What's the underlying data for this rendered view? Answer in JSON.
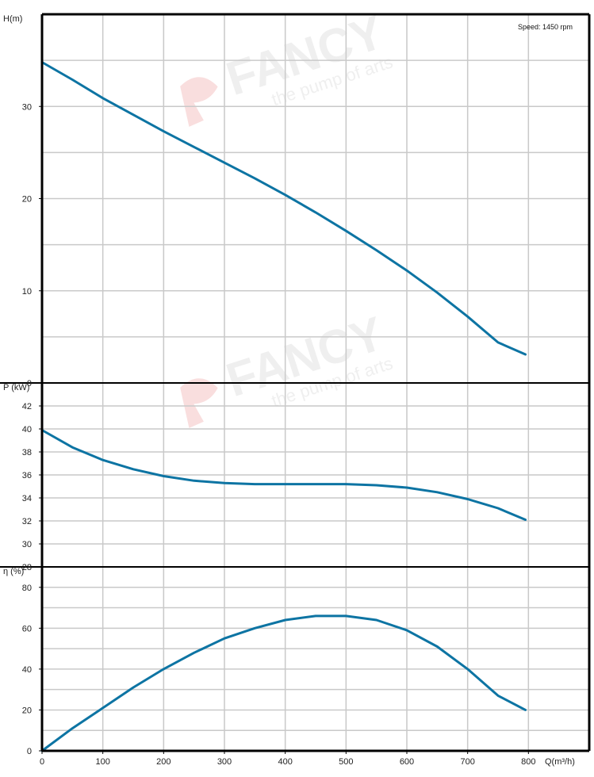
{
  "chart_data": [
    {
      "type": "line",
      "ylabel": "H(m)",
      "ylim": [
        0,
        40
      ],
      "yticks": [
        0,
        10,
        20,
        30
      ],
      "xlim": [
        0,
        900
      ],
      "grid": true,
      "annotation": "Speed: 1450 rpm",
      "series": [
        {
          "x": [
            0,
            50,
            100,
            150,
            200,
            250,
            300,
            350,
            400,
            450,
            500,
            550,
            600,
            650,
            700,
            750,
            795
          ],
          "y": [
            34.8,
            32.9,
            30.9,
            29.1,
            27.3,
            25.6,
            23.9,
            22.2,
            20.4,
            18.5,
            16.5,
            14.4,
            12.2,
            9.8,
            7.2,
            4.4,
            3.1
          ]
        }
      ]
    },
    {
      "type": "line",
      "ylabel": "P (kW)",
      "ylim": [
        28,
        44
      ],
      "yticks": [
        28,
        30,
        32,
        34,
        36,
        38,
        40,
        42
      ],
      "xlim": [
        0,
        900
      ],
      "grid": true,
      "series": [
        {
          "x": [
            0,
            50,
            100,
            150,
            200,
            250,
            300,
            350,
            400,
            450,
            500,
            550,
            600,
            650,
            700,
            750,
            795
          ],
          "y": [
            39.9,
            38.4,
            37.3,
            36.5,
            35.9,
            35.5,
            35.3,
            35.2,
            35.2,
            35.2,
            35.2,
            35.1,
            34.9,
            34.5,
            33.9,
            33.1,
            32.1
          ]
        }
      ]
    },
    {
      "type": "line",
      "ylabel": "η (%)",
      "ylim": [
        0,
        90
      ],
      "yticks": [
        0,
        20,
        40,
        60,
        80
      ],
      "xlim": [
        0,
        900
      ],
      "xticks": [
        0,
        100,
        200,
        300,
        400,
        500,
        600,
        700,
        800
      ],
      "xlabel": "Q(m³/h)",
      "grid": true,
      "series": [
        {
          "x": [
            0,
            50,
            100,
            150,
            200,
            250,
            300,
            350,
            400,
            450,
            500,
            550,
            600,
            650,
            700,
            750,
            795
          ],
          "y": [
            0,
            11,
            21,
            31,
            40,
            48,
            55,
            60,
            64,
            66,
            66,
            64,
            59,
            51,
            40,
            27,
            20
          ]
        }
      ]
    }
  ],
  "watermark": {
    "brand": "FANCY",
    "tagline": "the pump of arts"
  },
  "colors": {
    "curve": "#0d74a3",
    "grid": "#c9c9c9",
    "frame": "#000000",
    "watermark": "#f0f0f0",
    "watermark_logo": "#f9dede"
  }
}
